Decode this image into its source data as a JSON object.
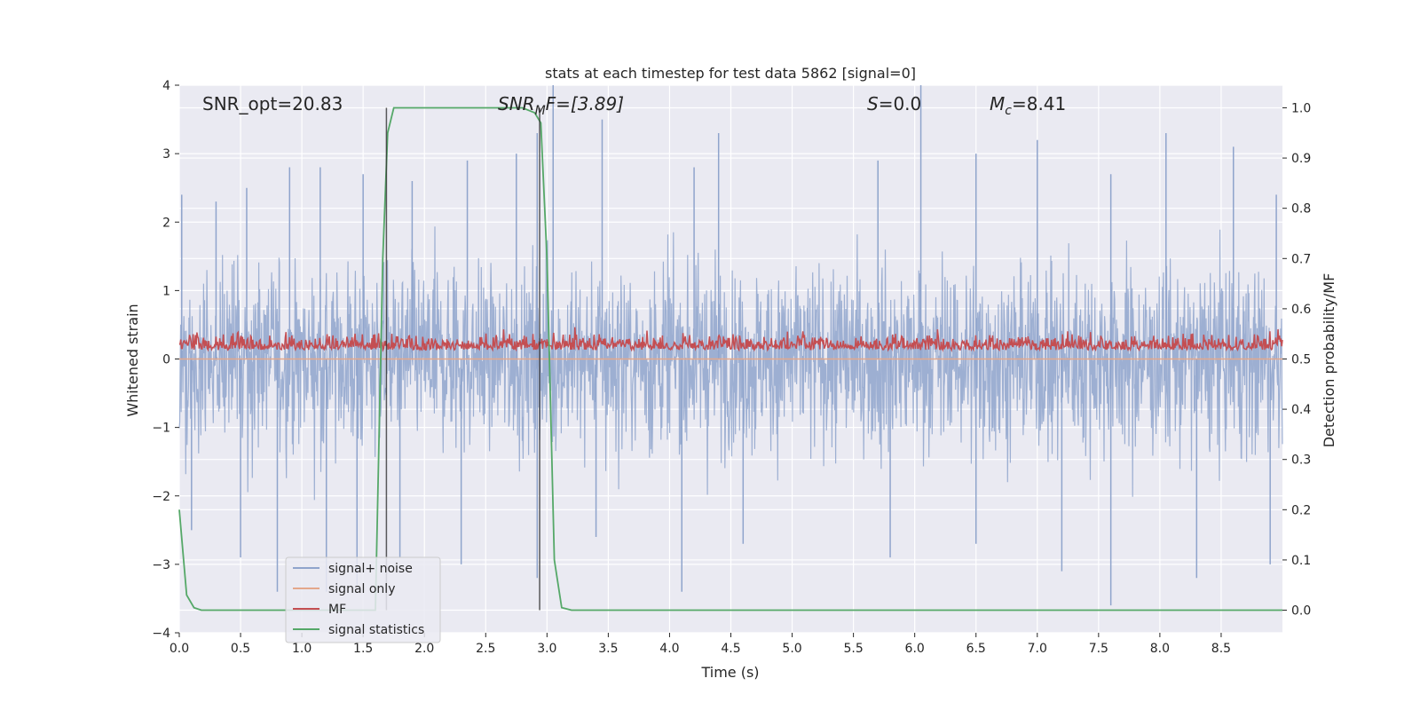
{
  "chart_data": {
    "type": "line",
    "title": "stats at each timestep for test data 5862 [signal=0]",
    "xlabel": "Time (s)",
    "ylabel": "Whitened strain",
    "y2label": "Detection probability/MF",
    "xlim": [
      0.0,
      9.0
    ],
    "ylim": [
      -4.0,
      4.0
    ],
    "y2lim": [
      -0.045,
      1.045
    ],
    "xticks": [
      "0.0",
      "0.5",
      "1.0",
      "1.5",
      "2.0",
      "2.5",
      "3.0",
      "3.5",
      "4.0",
      "4.5",
      "5.0",
      "5.5",
      "6.0",
      "6.5",
      "7.0",
      "7.5",
      "8.0",
      "8.5"
    ],
    "yticks": [
      "4",
      "3",
      "2",
      "1",
      "0",
      "−1",
      "−2",
      "−3",
      "−4"
    ],
    "y2ticks": [
      "1.0",
      "0.9",
      "0.8",
      "0.7",
      "0.6",
      "0.5",
      "0.4",
      "0.3",
      "0.2",
      "0.1",
      "0.0"
    ],
    "grid": true,
    "legend_position": "lower-left",
    "annotations": {
      "snr_opt": "SNR_opt=20.83",
      "snr_mf_main": "SNR",
      "snr_mf_sub": "M",
      "snr_mf_rest": "F=[3.89]",
      "s_sym": "S",
      "s_val": "=0.0",
      "mc_sym": "M",
      "mc_sub": "c",
      "mc_val": "=8.41"
    },
    "vertical_lines": [
      1.69,
      2.94
    ],
    "series": [
      {
        "name": "signal+ noise",
        "color": "#8fa4cc",
        "axis": "left",
        "description_values": "dense noise, envelope approx",
        "peaks_upper": [
          [
            0.02,
            2.4
          ],
          [
            0.3,
            2.3
          ],
          [
            0.55,
            2.5
          ],
          [
            0.9,
            2.8
          ],
          [
            1.15,
            2.8
          ],
          [
            1.5,
            2.7
          ],
          [
            1.9,
            2.6
          ],
          [
            2.35,
            2.9
          ],
          [
            2.75,
            3.0
          ],
          [
            2.92,
            3.3
          ],
          [
            3.05,
            4.0
          ],
          [
            3.45,
            3.5
          ],
          [
            4.2,
            2.8
          ],
          [
            4.4,
            3.3
          ],
          [
            5.7,
            2.9
          ],
          [
            6.05,
            4.0
          ],
          [
            6.5,
            3.0
          ],
          [
            7.0,
            3.2
          ],
          [
            7.6,
            2.7
          ],
          [
            8.05,
            3.3
          ],
          [
            8.6,
            3.1
          ],
          [
            8.95,
            2.4
          ]
        ],
        "peaks_lower": [
          [
            0.1,
            -2.5
          ],
          [
            0.5,
            -2.9
          ],
          [
            0.8,
            -3.4
          ],
          [
            1.2,
            -3.4
          ],
          [
            1.45,
            -3.3
          ],
          [
            1.8,
            -2.9
          ],
          [
            2.3,
            -3.0
          ],
          [
            2.92,
            -3.2
          ],
          [
            3.4,
            -2.6
          ],
          [
            4.1,
            -3.4
          ],
          [
            4.6,
            -2.7
          ],
          [
            5.8,
            -2.9
          ],
          [
            6.5,
            -2.7
          ],
          [
            7.2,
            -3.1
          ],
          [
            7.6,
            -3.6
          ],
          [
            8.3,
            -3.2
          ],
          [
            8.9,
            -3.0
          ]
        ]
      },
      {
        "name": "signal only",
        "color": "#e4a78b",
        "axis": "left",
        "values_constant": 0.0
      },
      {
        "name": "MF",
        "color": "#c44e52",
        "axis": "right",
        "range": [
          0.5,
          0.59
        ]
      },
      {
        "name": "signal statistics",
        "color": "#55a868",
        "axis": "right",
        "x": [
          0.0,
          0.06,
          0.12,
          0.18,
          0.3,
          1.6,
          1.66,
          1.7,
          1.75,
          2.8,
          2.9,
          2.95,
          3.0,
          3.06,
          3.12,
          3.2,
          9.0
        ],
        "y": [
          0.2,
          0.03,
          0.005,
          0.0,
          0.0,
          0.0,
          0.7,
          0.95,
          1.0,
          1.0,
          0.99,
          0.97,
          0.7,
          0.1,
          0.005,
          0.0,
          0.0
        ]
      }
    ]
  }
}
